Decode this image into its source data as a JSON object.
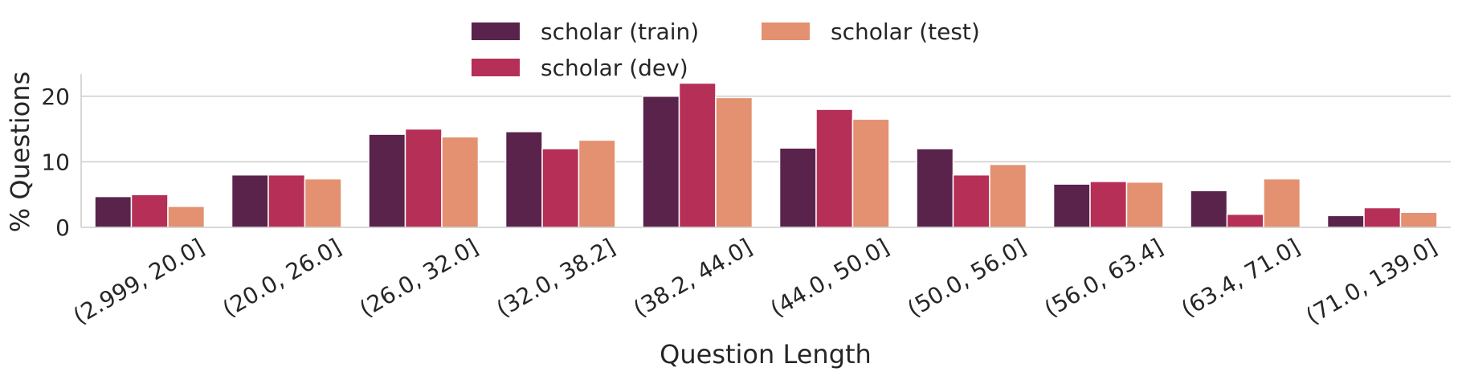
{
  "chart_data": {
    "type": "bar",
    "title": "",
    "xlabel": "Question Length",
    "ylabel": "% Questions",
    "ylim": [
      0,
      23.4
    ],
    "yticks": [
      0,
      10,
      20
    ],
    "grid": "horizontal",
    "legend_position": "top-center",
    "categories": [
      "(2.999, 20.0]",
      "(20.0, 26.0]",
      "(26.0, 32.0]",
      "(32.0, 38.2]",
      "(38.2, 44.0]",
      "(44.0, 50.0]",
      "(50.0, 56.0]",
      "(56.0, 63.4]",
      "(63.4, 71.0]",
      "(71.0, 139.0]"
    ],
    "series": [
      {
        "name": "scholar (train)",
        "color": "#5a234b",
        "values": [
          4.7,
          8.0,
          14.2,
          14.6,
          20.0,
          12.1,
          12.0,
          6.6,
          5.6,
          1.8
        ]
      },
      {
        "name": "scholar (dev)",
        "color": "#b52f57",
        "values": [
          5.0,
          8.0,
          15.0,
          12.0,
          22.0,
          18.0,
          8.0,
          7.0,
          2.0,
          3.0
        ]
      },
      {
        "name": "scholar (test)",
        "color": "#e39171",
        "values": [
          3.2,
          7.4,
          13.8,
          13.3,
          19.8,
          16.5,
          9.6,
          6.9,
          7.4,
          2.3
        ]
      }
    ]
  }
}
